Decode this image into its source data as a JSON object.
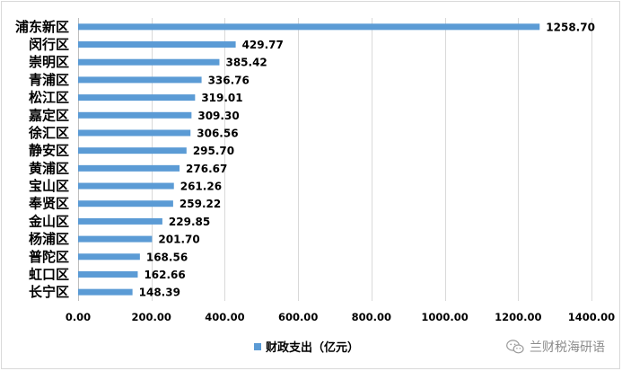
{
  "chart_data": {
    "type": "bar",
    "orientation": "horizontal",
    "categories": [
      "浦东新区",
      "闵行区",
      "崇明区",
      "青浦区",
      "松江区",
      "嘉定区",
      "徐汇区",
      "静安区",
      "黄浦区",
      "宝山区",
      "奉贤区",
      "金山区",
      "杨浦区",
      "普陀区",
      "虹口区",
      "长宁区"
    ],
    "series": [
      {
        "name": "财政支出（亿元）",
        "values": [
          1258.7,
          429.77,
          385.42,
          336.76,
          319.01,
          309.3,
          306.56,
          295.7,
          276.67,
          261.26,
          259.22,
          229.85,
          201.7,
          168.56,
          162.66,
          148.39
        ],
        "value_labels": [
          "1258.70",
          "429.77",
          "385.42",
          "336.76",
          "319.01",
          "309.30",
          "306.56",
          "295.70",
          "276.67",
          "261.26",
          "259.22",
          "229.85",
          "201.70",
          "168.56",
          "162.66",
          "148.39"
        ]
      }
    ],
    "xlim": [
      0,
      1400
    ],
    "x_ticks": [
      0,
      200,
      400,
      600,
      800,
      1000,
      1200,
      1400
    ],
    "x_tick_labels": [
      "0.00",
      "200.00",
      "400.00",
      "600.00",
      "800.00",
      "1000.00",
      "1200.00",
      "1400.00"
    ],
    "grid": true,
    "legend_position": "bottom",
    "colors": {
      "bar": "#5b9bd5",
      "grid": "#d9d9d9"
    }
  },
  "watermark": {
    "icon": "wechat-icon",
    "text": "兰财税海研语"
  }
}
